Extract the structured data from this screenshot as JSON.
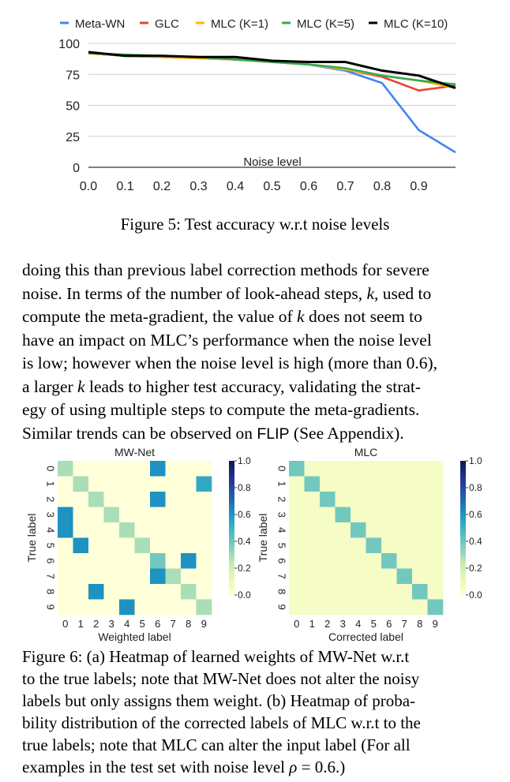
{
  "chart_data": [
    {
      "type": "line",
      "title": "",
      "xlabel": "Noise level",
      "ylabel": "",
      "x": [
        0.0,
        0.1,
        0.2,
        0.3,
        0.4,
        0.5,
        0.6,
        0.7,
        0.8,
        0.9,
        1.0
      ],
      "x_tick_labels": [
        "0.0",
        "0.1",
        "0.2",
        "0.3",
        "0.4",
        "0.5",
        "0.6",
        "0.7",
        "0.8",
        "0.9"
      ],
      "y_ticks": [
        "0",
        "25",
        "50",
        "75",
        "100"
      ],
      "ylim": [
        0,
        100
      ],
      "xlim": [
        0.0,
        1.0
      ],
      "legend_position": "top",
      "grid": "horizontal",
      "series": [
        {
          "name": "Meta-WN",
          "color": "#4285f4",
          "values": [
            92,
            90,
            89,
            88,
            87,
            85,
            83,
            78,
            68,
            30,
            12
          ]
        },
        {
          "name": "GLC",
          "color": "#ea4335",
          "values": [
            92,
            90,
            89,
            88,
            87,
            85,
            83,
            79,
            73,
            62,
            66
          ]
        },
        {
          "name": "MLC (K=1)",
          "color": "#fbbc04",
          "values": [
            92,
            90,
            89,
            88,
            87,
            85,
            83,
            79,
            74,
            70,
            64
          ]
        },
        {
          "name": "MLC (K=5)",
          "color": "#34a853",
          "values": [
            92,
            91,
            90,
            89,
            87,
            85,
            83,
            80,
            74,
            70,
            67
          ]
        },
        {
          "name": "MLC (K=10)",
          "color": "#000000",
          "values": [
            93,
            90,
            90,
            89,
            89,
            86,
            85,
            85,
            78,
            74,
            64
          ]
        }
      ]
    },
    {
      "type": "heatmap",
      "title": "MW-Net",
      "xlabel": "Weighted label",
      "ylabel": "True label",
      "x_tick_labels": [
        "0",
        "1",
        "2",
        "3",
        "4",
        "5",
        "6",
        "7",
        "8",
        "9"
      ],
      "y_tick_labels": [
        "0",
        "1",
        "2",
        "3",
        "4",
        "5",
        "6",
        "7",
        "8",
        "9"
      ],
      "colorbar_ticks": [
        "1.0",
        "0.8",
        "0.6",
        "0.4",
        "0.2",
        "0.0"
      ],
      "values": [
        [
          0.3,
          0.0,
          0.0,
          0.0,
          0.0,
          0.0,
          0.62,
          0.0,
          0.0,
          0.0
        ],
        [
          0.0,
          0.3,
          0.0,
          0.0,
          0.0,
          0.0,
          0.0,
          0.0,
          0.0,
          0.55
        ],
        [
          0.0,
          0.0,
          0.3,
          0.0,
          0.0,
          0.0,
          0.62,
          0.0,
          0.0,
          0.0
        ],
        [
          0.62,
          0.0,
          0.0,
          0.3,
          0.0,
          0.0,
          0.0,
          0.0,
          0.0,
          0.0
        ],
        [
          0.62,
          0.0,
          0.0,
          0.0,
          0.3,
          0.0,
          0.0,
          0.0,
          0.0,
          0.0
        ],
        [
          0.0,
          0.62,
          0.0,
          0.0,
          0.0,
          0.3,
          0.0,
          0.0,
          0.0,
          0.0
        ],
        [
          0.0,
          0.0,
          0.0,
          0.0,
          0.0,
          0.0,
          0.4,
          0.0,
          0.62,
          0.0
        ],
        [
          0.0,
          0.0,
          0.0,
          0.0,
          0.0,
          0.0,
          0.62,
          0.3,
          0.0,
          0.0
        ],
        [
          0.0,
          0.0,
          0.62,
          0.0,
          0.0,
          0.0,
          0.0,
          0.0,
          0.3,
          0.0
        ],
        [
          0.0,
          0.0,
          0.0,
          0.0,
          0.62,
          0.0,
          0.0,
          0.0,
          0.0,
          0.3
        ]
      ]
    },
    {
      "type": "heatmap",
      "title": "MLC",
      "xlabel": "Corrected label",
      "ylabel": "True label",
      "x_tick_labels": [
        "0",
        "1",
        "2",
        "3",
        "4",
        "5",
        "6",
        "7",
        "8",
        "9"
      ],
      "y_tick_labels": [
        "0",
        "1",
        "2",
        "3",
        "4",
        "5",
        "6",
        "7",
        "8",
        "9"
      ],
      "colorbar_ticks": [
        "1.0",
        "0.8",
        "0.6",
        "0.4",
        "0.2",
        "0.0"
      ],
      "values": [
        [
          0.4,
          0.06,
          0.06,
          0.06,
          0.06,
          0.06,
          0.06,
          0.06,
          0.06,
          0.06
        ],
        [
          0.06,
          0.4,
          0.06,
          0.06,
          0.06,
          0.06,
          0.06,
          0.06,
          0.06,
          0.06
        ],
        [
          0.06,
          0.06,
          0.4,
          0.06,
          0.06,
          0.06,
          0.06,
          0.06,
          0.06,
          0.06
        ],
        [
          0.06,
          0.06,
          0.06,
          0.4,
          0.06,
          0.06,
          0.06,
          0.06,
          0.06,
          0.06
        ],
        [
          0.06,
          0.06,
          0.06,
          0.06,
          0.4,
          0.06,
          0.06,
          0.06,
          0.06,
          0.06
        ],
        [
          0.06,
          0.06,
          0.06,
          0.06,
          0.06,
          0.4,
          0.06,
          0.06,
          0.06,
          0.06
        ],
        [
          0.06,
          0.06,
          0.06,
          0.06,
          0.06,
          0.06,
          0.4,
          0.06,
          0.06,
          0.06
        ],
        [
          0.06,
          0.06,
          0.06,
          0.06,
          0.06,
          0.06,
          0.06,
          0.4,
          0.06,
          0.06
        ],
        [
          0.06,
          0.06,
          0.06,
          0.06,
          0.06,
          0.06,
          0.06,
          0.06,
          0.4,
          0.06
        ],
        [
          0.06,
          0.06,
          0.06,
          0.06,
          0.06,
          0.06,
          0.06,
          0.06,
          0.06,
          0.4
        ]
      ]
    }
  ],
  "figure5": {
    "caption": "Figure 5: Test accuracy w.r.t noise levels"
  },
  "paragraph": {
    "line1": "doing this than previous label correction methods for severe",
    "line2_a": "noise. In terms of the number of look-ahead steps, ",
    "line2_k": "k",
    "line2_b": ", used to",
    "line3": "compute the meta-gradient, the value of ",
    "line3_k": "k",
    "line3_b": " does not seem to",
    "line4": "have an impact on MLC’s performance when the noise level",
    "line5": "is low; however when the noise level is high (more than 0.6),",
    "line6_a": "a larger ",
    "line6_k": "k",
    "line6_b": " leads to higher test accuracy, validating the strat-",
    "line7": "egy of using multiple steps to compute the meta-gradients.",
    "line8_a": "Similar trends can be observed on ",
    "line8_flip": "FLIP",
    "line8_b": " (See Appendix)."
  },
  "figure6": {
    "line1": "Figure 6: (a) Heatmap of learned weights of MW-Net w.r.t",
    "line2": "to the true labels; note that MW-Net does not alter the noisy",
    "line3": "labels but only assigns them weight. (b) Heatmap of proba-",
    "line4": "bility distribution of the corrected labels of MLC w.r.t to the",
    "line5": "true labels; note that MLC can alter the input label (For all",
    "line6_a": "examples in the test set with noise level ",
    "line6_rho": "ρ",
    "line6_b": " = 0.6.)"
  }
}
